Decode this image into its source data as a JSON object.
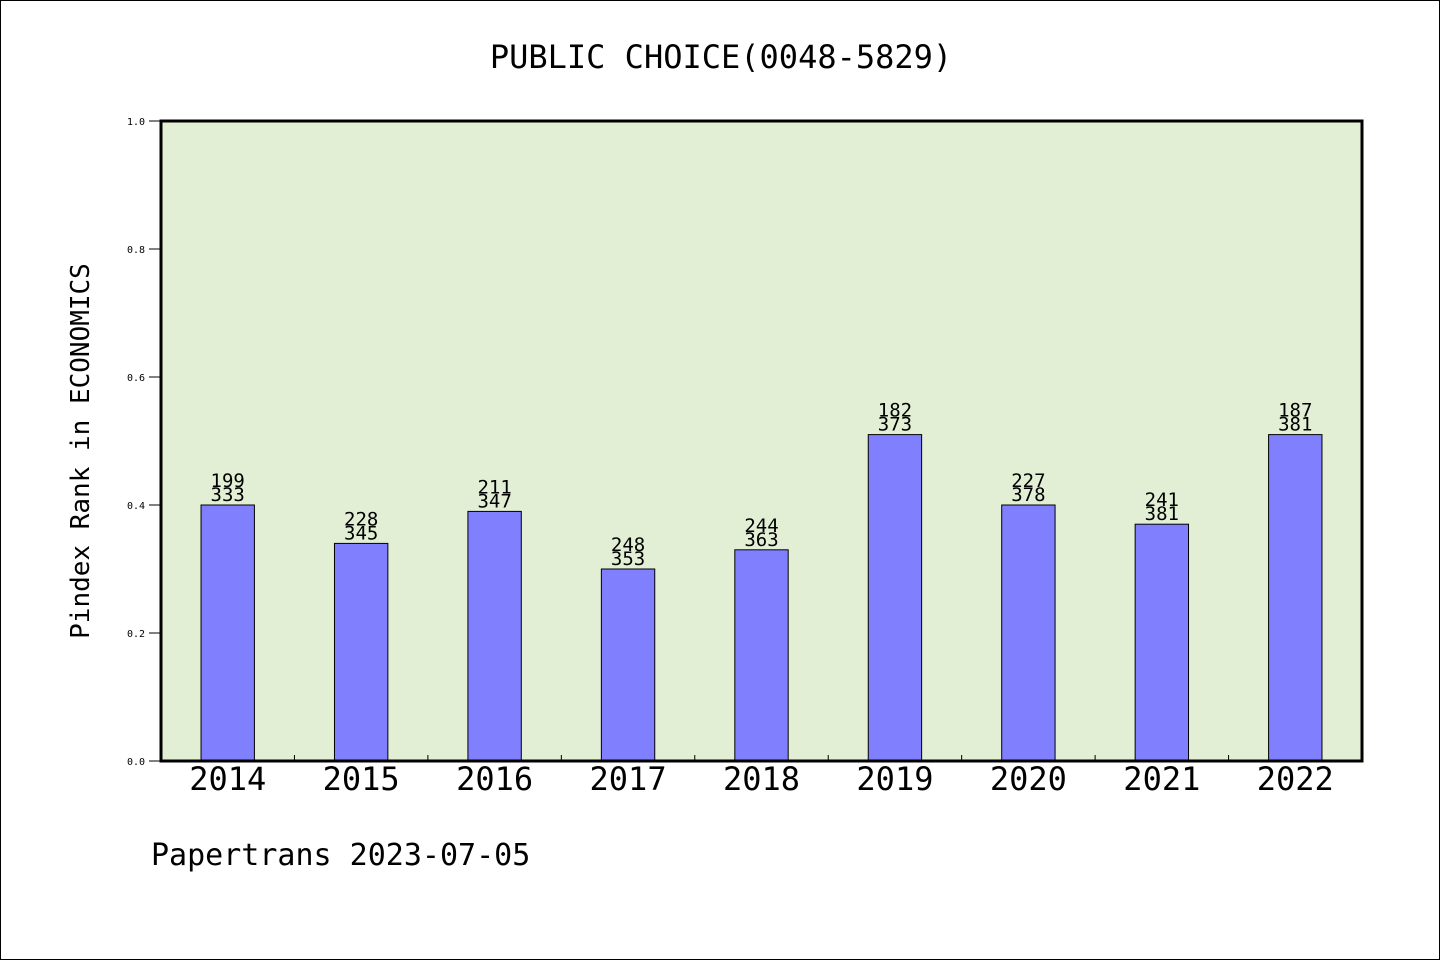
{
  "chart_data": {
    "type": "bar",
    "title": "PUBLIC CHOICE(0048-5829)",
    "ylabel": "Pindex Rank in ECONOMICS",
    "xlabel": "",
    "categories": [
      "2014",
      "2015",
      "2016",
      "2017",
      "2018",
      "2019",
      "2020",
      "2021",
      "2022"
    ],
    "values": [
      0.4,
      0.34,
      0.39,
      0.3,
      0.33,
      0.51,
      0.4,
      0.37,
      0.51
    ],
    "rank_labels": [
      "199",
      "228",
      "211",
      "248",
      "244",
      "182",
      "227",
      "241",
      "187"
    ],
    "total_labels": [
      "333",
      "345",
      "347",
      "353",
      "363",
      "373",
      "378",
      "381",
      "381"
    ],
    "ylim": [
      0,
      1
    ],
    "yticks": [
      "0.0",
      "0.2",
      "0.4",
      "0.6",
      "0.8",
      "1.0"
    ],
    "grid": false,
    "footer": "Papertrans 2023-07-05",
    "colors": {
      "plot_background": "#e2efd5",
      "bar_fill": "#8080ff",
      "bar_edge": "#000000"
    }
  }
}
